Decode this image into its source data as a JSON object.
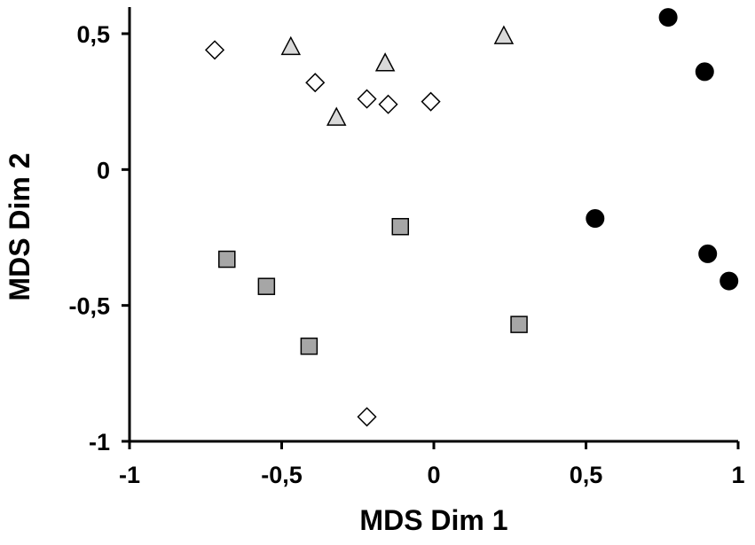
{
  "chart_data": {
    "type": "scatter",
    "title": "",
    "xlabel": "MDS Dim 1",
    "ylabel": "MDS Dim 2",
    "xlim": [
      -1,
      1
    ],
    "ylim": [
      -1,
      0.6
    ],
    "grid": false,
    "legend": "none",
    "x_ticks": [
      -1,
      -0.5,
      0,
      0.5,
      1
    ],
    "x_tick_labels": [
      "-1",
      "-0,5",
      "0",
      "0,5",
      "1"
    ],
    "y_ticks": [
      -1,
      -0.5,
      0,
      0.5
    ],
    "y_tick_labels": [
      "-1",
      "-0,5",
      "0",
      "0,5"
    ],
    "series": [
      {
        "marker": "circle",
        "color": "#000000",
        "edge": "#000000",
        "points": [
          {
            "x": 0.77,
            "y": 0.56
          },
          {
            "x": 0.89,
            "y": 0.36
          },
          {
            "x": 0.53,
            "y": -0.18
          },
          {
            "x": 0.9,
            "y": -0.31
          },
          {
            "x": 0.97,
            "y": -0.41
          }
        ]
      },
      {
        "marker": "square",
        "color": "#a6a6a6",
        "edge": "#000000",
        "points": [
          {
            "x": -0.68,
            "y": -0.33
          },
          {
            "x": -0.55,
            "y": -0.43
          },
          {
            "x": -0.41,
            "y": -0.65
          },
          {
            "x": -0.11,
            "y": -0.21
          },
          {
            "x": 0.28,
            "y": -0.57
          }
        ]
      },
      {
        "marker": "triangle",
        "color": "#d9d9d9",
        "edge": "#000000",
        "points": [
          {
            "x": -0.47,
            "y": 0.45
          },
          {
            "x": -0.16,
            "y": 0.39
          },
          {
            "x": -0.32,
            "y": 0.19
          },
          {
            "x": 0.23,
            "y": 0.49
          }
        ]
      },
      {
        "marker": "diamond",
        "color": "#ffffff",
        "edge": "#000000",
        "points": [
          {
            "x": -0.72,
            "y": 0.44
          },
          {
            "x": -0.39,
            "y": 0.32
          },
          {
            "x": -0.22,
            "y": 0.26
          },
          {
            "x": -0.15,
            "y": 0.24
          },
          {
            "x": -0.01,
            "y": 0.25
          },
          {
            "x": -0.22,
            "y": -0.91
          }
        ]
      }
    ]
  }
}
